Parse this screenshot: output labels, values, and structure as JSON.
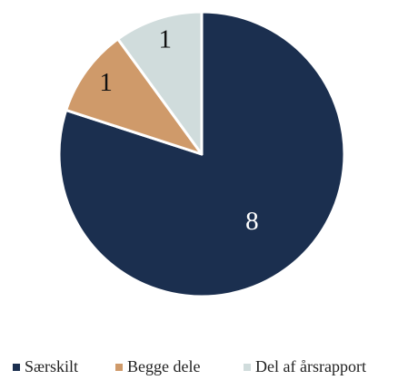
{
  "chart_data": {
    "type": "pie",
    "categories": [
      "Særskilt",
      "Begge dele",
      "Del af årsrapport"
    ],
    "values": [
      8,
      1,
      1
    ],
    "colors": [
      "#1b2f4f",
      "#cf9a6a",
      "#d0dcdc"
    ],
    "legend": "bottom"
  }
}
